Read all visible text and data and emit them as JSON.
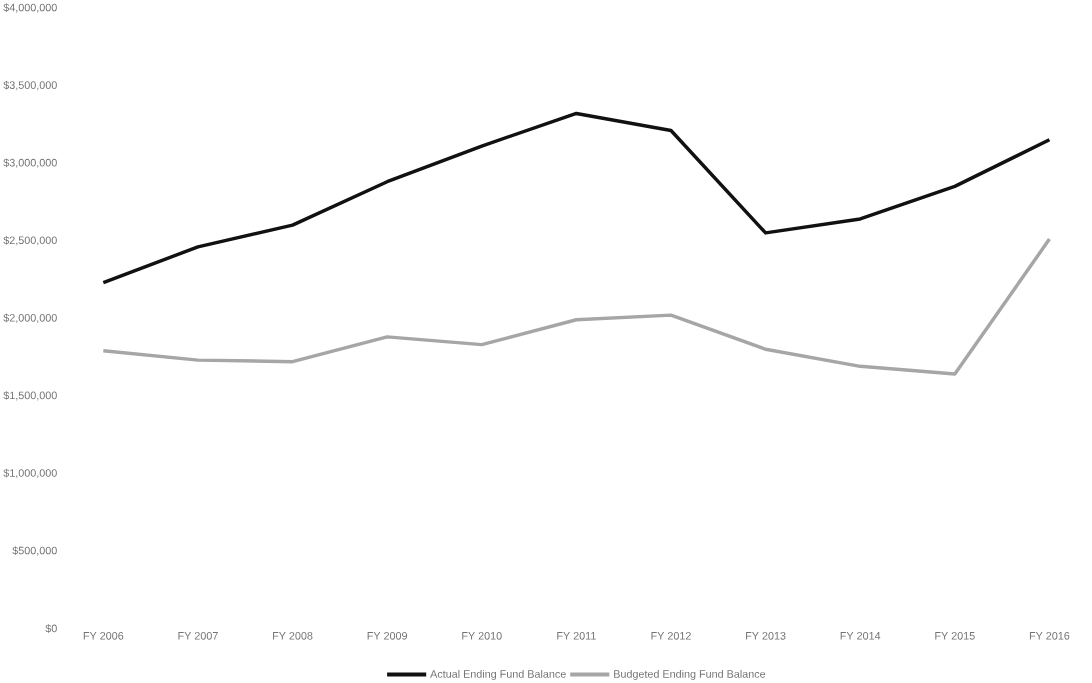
{
  "chart_data": {
    "type": "line",
    "categories": [
      "FY 2006",
      "FY 2007",
      "FY 2008",
      "FY 2009",
      "FY 2010",
      "FY 2011",
      "FY 2012",
      "FY 2013",
      "FY 2014",
      "FY 2015",
      "FY 2016"
    ],
    "series": [
      {
        "name": "Actual Ending Fund Balance",
        "color": "#111111",
        "values": [
          2230000,
          2460000,
          2600000,
          2880000,
          3110000,
          3320000,
          3210000,
          2550000,
          2640000,
          2850000,
          3150000
        ]
      },
      {
        "name": "Budgeted Ending Fund Balance",
        "color": "#a6a6a6",
        "values": [
          1790000,
          1730000,
          1720000,
          1880000,
          1830000,
          1990000,
          2020000,
          1800000,
          1690000,
          1640000,
          2510000
        ]
      }
    ],
    "ylim": [
      0,
      4000000
    ],
    "yticks": [
      {
        "value": 0,
        "label": "$0"
      },
      {
        "value": 500000,
        "label": "$500,000"
      },
      {
        "value": 1000000,
        "label": "$1,000,000"
      },
      {
        "value": 1500000,
        "label": "$1,500,000"
      },
      {
        "value": 2000000,
        "label": "$2,000,000"
      },
      {
        "value": 2500000,
        "label": "$2,500,000"
      },
      {
        "value": 3000000,
        "label": "$3,000,000"
      },
      {
        "value": 3500000,
        "label": "$3,500,000"
      },
      {
        "value": 4000000,
        "label": "$4,000,000"
      }
    ],
    "legend": "bottom",
    "grid": false,
    "marker": "none",
    "line_style": "solid"
  }
}
